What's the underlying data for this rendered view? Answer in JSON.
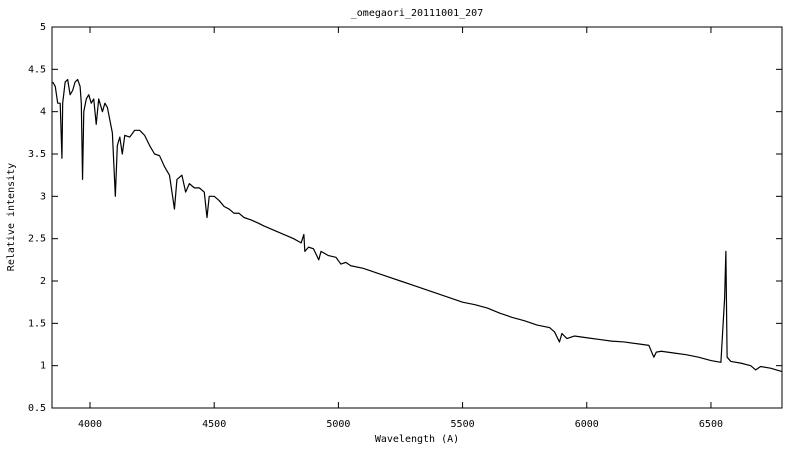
{
  "chart_data": {
    "type": "line",
    "title": "_omegaori_20111001_207",
    "x_label": "Wavelength (A)",
    "y_label": "Relative intensity",
    "x": [
      3850,
      3860,
      3870,
      3880,
      3887,
      3890,
      3900,
      3910,
      3920,
      3930,
      3940,
      3950,
      3960,
      3965,
      3970,
      3975,
      3985,
      3995,
      4005,
      4015,
      4025,
      4035,
      4050,
      4060,
      4070,
      4080,
      4090,
      4102,
      4110,
      4120,
      4130,
      4140,
      4160,
      4180,
      4200,
      4220,
      4240,
      4260,
      4280,
      4300,
      4320,
      4340,
      4350,
      4370,
      4385,
      4400,
      4420,
      4440,
      4460,
      4471,
      4480,
      4500,
      4520,
      4540,
      4560,
      4580,
      4600,
      4620,
      4650,
      4680,
      4700,
      4740,
      4780,
      4820,
      4850,
      4861,
      4865,
      4880,
      4900,
      4921,
      4930,
      4960,
      4990,
      5010,
      5030,
      5050,
      5100,
      5150,
      5200,
      5250,
      5300,
      5350,
      5400,
      5450,
      5500,
      5550,
      5600,
      5650,
      5700,
      5750,
      5800,
      5850,
      5870,
      5890,
      5900,
      5920,
      5950,
      6000,
      6050,
      6100,
      6150,
      6200,
      6250,
      6270,
      6280,
      6300,
      6350,
      6400,
      6450,
      6500,
      6540,
      6555,
      6560,
      6565,
      6580,
      6620,
      6660,
      6680,
      6700,
      6740,
      6786
    ],
    "values": [
      4.35,
      4.3,
      4.1,
      4.1,
      3.45,
      4.1,
      4.35,
      4.38,
      4.2,
      4.25,
      4.35,
      4.38,
      4.3,
      4.1,
      3.2,
      4.0,
      4.15,
      4.2,
      4.1,
      4.15,
      3.85,
      4.15,
      4.0,
      4.1,
      4.05,
      3.9,
      3.75,
      3.0,
      3.6,
      3.7,
      3.5,
      3.72,
      3.7,
      3.78,
      3.78,
      3.72,
      3.6,
      3.5,
      3.48,
      3.35,
      3.25,
      2.85,
      3.2,
      3.25,
      3.05,
      3.15,
      3.1,
      3.1,
      3.05,
      2.75,
      3.0,
      3.0,
      2.95,
      2.88,
      2.85,
      2.8,
      2.8,
      2.75,
      2.72,
      2.68,
      2.65,
      2.6,
      2.55,
      2.5,
      2.45,
      2.55,
      2.35,
      2.4,
      2.38,
      2.25,
      2.35,
      2.3,
      2.28,
      2.2,
      2.22,
      2.18,
      2.15,
      2.1,
      2.05,
      2.0,
      1.95,
      1.9,
      1.85,
      1.8,
      1.75,
      1.72,
      1.68,
      1.62,
      1.57,
      1.53,
      1.48,
      1.45,
      1.4,
      1.28,
      1.38,
      1.32,
      1.35,
      1.33,
      1.31,
      1.29,
      1.28,
      1.26,
      1.24,
      1.1,
      1.16,
      1.17,
      1.15,
      1.13,
      1.1,
      1.06,
      1.04,
      1.8,
      2.35,
      1.1,
      1.05,
      1.03,
      1.0,
      0.95,
      0.99,
      0.97,
      0.93
    ],
    "color": "#000000",
    "xlim": [
      3847,
      6786
    ],
    "xticks": [
      4000,
      4500,
      5000,
      5500,
      6000,
      6500
    ],
    "ylim": [
      0.5,
      5
    ],
    "yticks": [
      0.5,
      1,
      1.5,
      2,
      2.5,
      3,
      3.5,
      4,
      4.5,
      5
    ],
    "grid": false
  }
}
